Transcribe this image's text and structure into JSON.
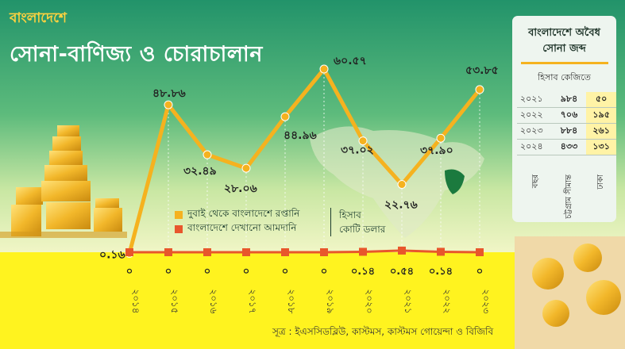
{
  "header": {
    "tag": "বাংলাদেশে",
    "title": "সোনা-বাণিজ্য ও চোরাচালান"
  },
  "legend": [
    {
      "label": "দুবাই থেকে বাংলাদেশে রপ্তানি",
      "color": "#f5b21f"
    },
    {
      "label": "বাংলাদেশে দেখানো আমদানি",
      "color": "#e8562c"
    }
  ],
  "unit": [
    "হিসাব",
    "কোটি ডলার"
  ],
  "source": "সূত্র : ইএসসিডব্লিউ, কাস্টমস, কাস্টমস গোয়েন্দা ও বিজিবি",
  "chart_data": {
    "type": "line",
    "categories": [
      "২০১৪",
      "২০১৫",
      "২০১৬",
      "২০১৭",
      "২০১৮",
      "২০১৯",
      "২০২০",
      "২০২১",
      "২০২২",
      "২০২৩"
    ],
    "series": [
      {
        "name": "দুবাই থেকে বাংলাদেশে রপ্তানি",
        "values": [
          0.16,
          48.86,
          32.49,
          28.06,
          44.96,
          60.57,
          37.02,
          22.76,
          37.9,
          53.85
        ],
        "labels": [
          "০.১৬",
          "৪৮.৮৬",
          "৩২.৪৯",
          "২৮.০৬",
          "৪৪.৯৬",
          "৬০.৫৭",
          "৩৭.০২",
          "২২.৭৬",
          "৩৭.৯০",
          "৫৩.৮৫"
        ]
      },
      {
        "name": "বাংলাদেশে দেখানো আমদানি",
        "values": [
          0,
          0,
          0,
          0,
          0,
          0,
          0.14,
          0.54,
          0.14,
          0
        ],
        "labels": [
          "০",
          "০",
          "০",
          "০",
          "০",
          "০",
          "০.১৪",
          "০.৫৪",
          "০.১৪",
          "০"
        ]
      }
    ],
    "ylim": [
      0,
      65
    ],
    "colors": {
      "export": "#f5b21f",
      "import": "#e8562c"
    }
  },
  "seizure_panel": {
    "title_line1": "বাংলাদেশে অবৈধ",
    "title_line2": "সোনা জব্দ",
    "subtitle": "হিসাব কেজিতে",
    "rows": [
      {
        "year": "২০২১",
        "a": "৯৮৪",
        "b": "৫০"
      },
      {
        "year": "২০২২",
        "a": "৭০৬",
        "b": "১৯৫"
      },
      {
        "year": "২০২৩",
        "a": "৮৮৪",
        "b": "২৬১"
      },
      {
        "year": "২০২৪",
        "a": "৪৩৩",
        "b": "১৩১"
      }
    ],
    "col_heads": [
      "বছর",
      "চট্টগ্রাম সীমান্ত",
      "ঢাকা"
    ]
  },
  "colors": {
    "green_top": "#2e9a6a",
    "green_mid": "#55b87a",
    "yellow_bottom": "#fff31f"
  }
}
